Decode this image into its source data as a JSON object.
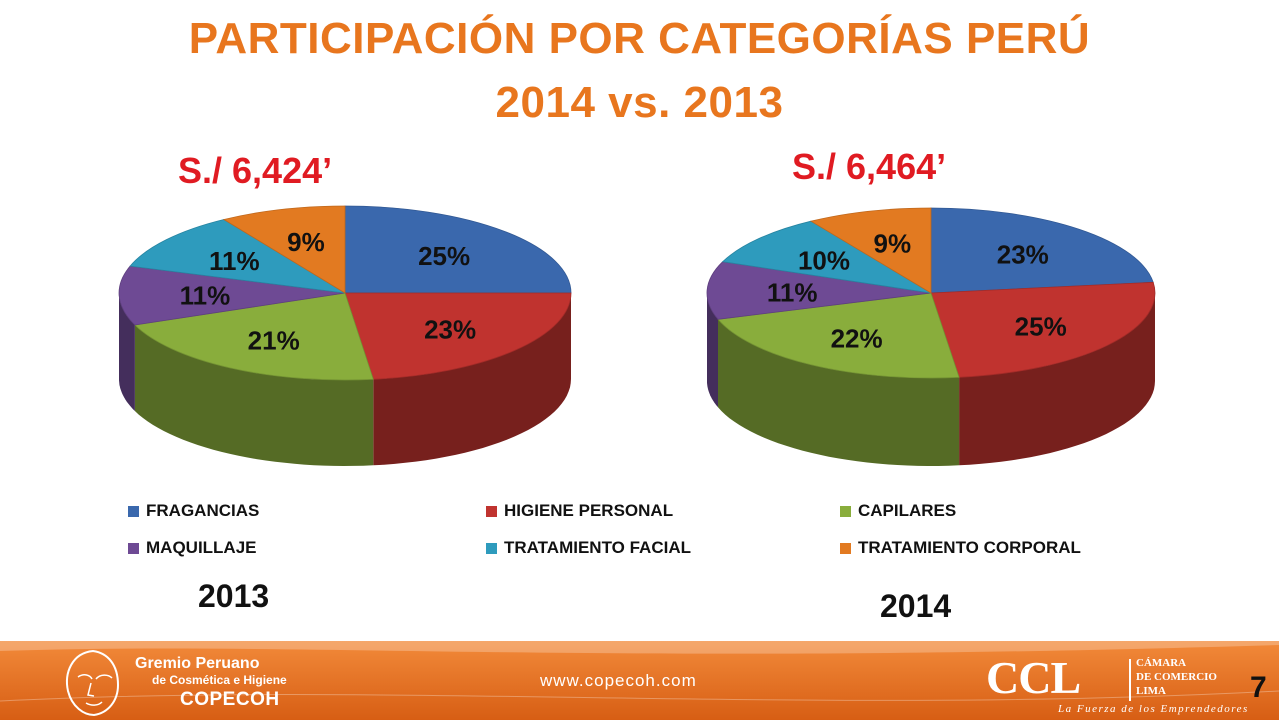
{
  "title_line1": "PARTICIPACIÓN POR CATEGORÍAS PERÚ",
  "title_line2": "2014  vs. 2013",
  "colors": {
    "title": "#e8761e",
    "total": "#e01b22",
    "fragancias": "#3a68ad",
    "higiene": "#c0332f",
    "capilares": "#89ad3c",
    "maquillaje": "#6e4a94",
    "facial": "#2e9bbd",
    "corporal": "#e27a21"
  },
  "chart_data": [
    {
      "type": "pie",
      "title": "S./ 6,424’",
      "xlabel": "2013",
      "categories": [
        "FRAGANCIAS",
        "HIGIENE PERSONAL",
        "CAPILARES",
        "MAQUILLAJE",
        "TRATAMIENTO FACIAL",
        "TRATAMIENTO CORPORAL"
      ],
      "values": [
        25,
        23,
        21,
        11,
        11,
        9
      ],
      "labels": [
        "25%",
        "23%",
        "21%",
        "11%",
        "11%",
        "9%"
      ]
    },
    {
      "type": "pie",
      "title": "S./ 6,464’",
      "xlabel": "2014",
      "categories": [
        "FRAGANCIAS",
        "HIGIENE PERSONAL",
        "CAPILARES",
        "MAQUILLAJE",
        "TRATAMIENTO FACIAL",
        "TRATAMIENTO CORPORAL"
      ],
      "values": [
        23,
        25,
        22,
        11,
        10,
        9
      ],
      "labels": [
        "23%",
        "25%",
        "22%",
        "11%",
        "10%",
        "9%"
      ]
    }
  ],
  "legend": [
    {
      "label": "FRAGANCIAS",
      "color": "#3a68ad"
    },
    {
      "label": "HIGIENE PERSONAL",
      "color": "#c0332f"
    },
    {
      "label": "CAPILARES",
      "color": "#89ad3c"
    },
    {
      "label": "MAQUILLAJE",
      "color": "#6e4a94"
    },
    {
      "label": "TRATAMIENTO FACIAL",
      "color": "#2e9bbd"
    },
    {
      "label": "TRATAMIENTO CORPORAL",
      "color": "#e27a21"
    }
  ],
  "footer": {
    "org_line1": "Gremio Peruano",
    "org_line2": "de Cosmética e Higiene",
    "org_line3": "COPECOH",
    "url": "www.copecoh.com",
    "ccl": "CCL",
    "ccl_line1": "CÁMARA",
    "ccl_line2": "DE COMERCIO",
    "ccl_line3": "LIMA",
    "tagline": "La Fuerza de los Emprendedores",
    "page": "7"
  }
}
